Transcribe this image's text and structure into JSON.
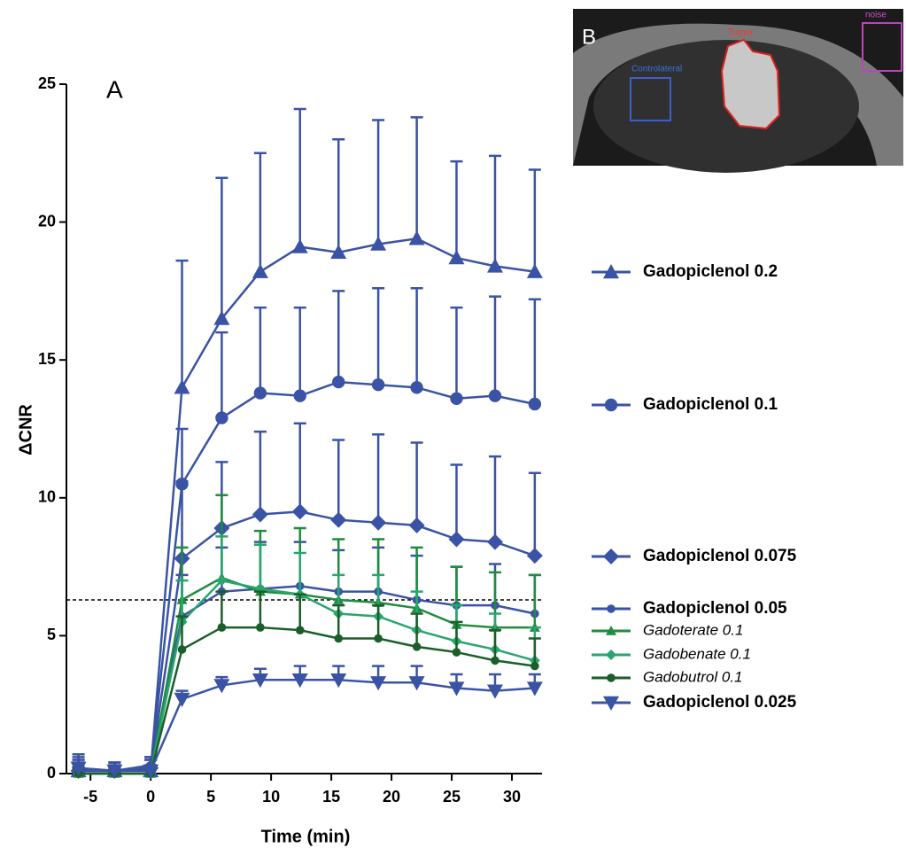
{
  "chart_data": {
    "type": "line",
    "panel_label": "A",
    "x_label": "Time (min)",
    "y_label": "ΔCNR",
    "xlim": [
      -7,
      32.5
    ],
    "ylim": [
      0,
      25
    ],
    "xticks": [
      -5,
      0,
      5,
      10,
      15,
      20,
      25,
      30
    ],
    "yticks": [
      0,
      5,
      10,
      15,
      20,
      25
    ],
    "hline": 6.3,
    "x": [
      -6,
      -3,
      0,
      2.6,
      5.9,
      9.1,
      12.4,
      15.6,
      18.9,
      22.1,
      25.4,
      28.6,
      31.9
    ],
    "series": [
      {
        "name": "Gadopiclenol 0.2",
        "color": "#3a53a4",
        "marker": "triangle-up",
        "font_style": "bold",
        "values": [
          0.1,
          0.1,
          0.1,
          14.0,
          16.5,
          18.2,
          19.1,
          18.9,
          19.2,
          19.4,
          18.7,
          18.4,
          18.2
        ],
        "errors": [
          0.5,
          0.3,
          0.4,
          4.6,
          5.1,
          4.3,
          5.0,
          4.1,
          4.5,
          4.4,
          3.5,
          4.0,
          3.7
        ]
      },
      {
        "name": "Gadopiclenol 0.1",
        "color": "#3a53a4",
        "marker": "circle",
        "font_style": "bold",
        "values": [
          0.2,
          0.1,
          0.2,
          10.5,
          12.9,
          13.8,
          13.7,
          14.2,
          14.1,
          14.0,
          13.6,
          13.7,
          13.4
        ],
        "errors": [
          0.5,
          0.3,
          0.4,
          2.0,
          3.1,
          3.1,
          3.2,
          3.3,
          3.5,
          3.6,
          3.3,
          3.6,
          3.8
        ]
      },
      {
        "name": "Gadopiclenol 0.075",
        "color": "#3a53a4",
        "marker": "diamond",
        "font_style": "bold",
        "values": [
          0.1,
          0.1,
          0.2,
          7.8,
          8.9,
          9.4,
          9.5,
          9.2,
          9.1,
          9.0,
          8.5,
          8.4,
          7.9
        ],
        "errors": [
          0.4,
          0.3,
          0.3,
          2.8,
          2.4,
          3.0,
          3.2,
          2.9,
          3.2,
          3.0,
          2.7,
          3.1,
          3.0
        ]
      },
      {
        "name": "Gadopiclenol 0.05",
        "color": "#3a53a4",
        "marker": "circle-small",
        "font_style": "bold",
        "values": [
          0.1,
          0.1,
          0.3,
          5.7,
          6.6,
          6.7,
          6.8,
          6.6,
          6.6,
          6.3,
          6.1,
          6.1,
          5.8
        ],
        "errors": [
          0.3,
          0.2,
          0.3,
          1.5,
          1.6,
          1.7,
          1.6,
          1.5,
          1.6,
          1.6,
          1.4,
          1.5,
          1.4
        ]
      },
      {
        "name": "Gadoterate 0.1",
        "color": "#1f8c3f",
        "marker": "triangle-up-small",
        "font_style": "italic",
        "values": [
          0.0,
          0.0,
          0.0,
          6.3,
          7.1,
          6.6,
          6.5,
          6.3,
          6.2,
          6.0,
          5.4,
          5.3,
          5.3
        ],
        "errors": [
          0.2,
          0.2,
          0.2,
          1.9,
          3.0,
          2.2,
          2.4,
          2.2,
          2.3,
          2.2,
          2.1,
          2.0,
          1.9
        ]
      },
      {
        "name": "Gadobenate 0.1",
        "color": "#29a66f",
        "marker": "diamond-small",
        "font_style": "italic",
        "values": [
          0.0,
          0.0,
          0.0,
          5.5,
          7.0,
          6.7,
          6.5,
          5.8,
          5.7,
          5.2,
          4.8,
          4.5,
          4.1
        ],
        "errors": [
          0.2,
          0.2,
          0.2,
          1.5,
          1.6,
          1.6,
          1.5,
          1.4,
          1.5,
          1.4,
          1.3,
          1.3,
          1.2
        ]
      },
      {
        "name": "Gadobutrol 0.1",
        "color": "#1b5e2a",
        "marker": "circle-small",
        "font_style": "italic",
        "values": [
          0.0,
          0.0,
          0.0,
          4.5,
          5.3,
          5.3,
          5.2,
          4.9,
          4.9,
          4.6,
          4.4,
          4.1,
          3.9
        ],
        "errors": [
          0.2,
          0.2,
          0.2,
          1.2,
          1.3,
          1.3,
          1.3,
          1.2,
          1.2,
          1.2,
          1.1,
          1.1,
          1.0
        ]
      },
      {
        "name": "Gadopiclenol 0.025",
        "color": "#3a53a4",
        "marker": "triangle-down",
        "font_style": "bold",
        "values": [
          0.2,
          0.1,
          0.1,
          2.7,
          3.2,
          3.4,
          3.4,
          3.4,
          3.3,
          3.3,
          3.1,
          3.0,
          3.1
        ],
        "errors": [
          0.3,
          0.2,
          0.2,
          0.3,
          0.3,
          0.4,
          0.5,
          0.5,
          0.6,
          0.6,
          0.5,
          0.6,
          0.5
        ]
      }
    ],
    "inset": {
      "panel_label": "B",
      "roi_contralateral": "Controlateral",
      "roi_tumor": "Tumor",
      "roi_noise": "noise"
    }
  }
}
